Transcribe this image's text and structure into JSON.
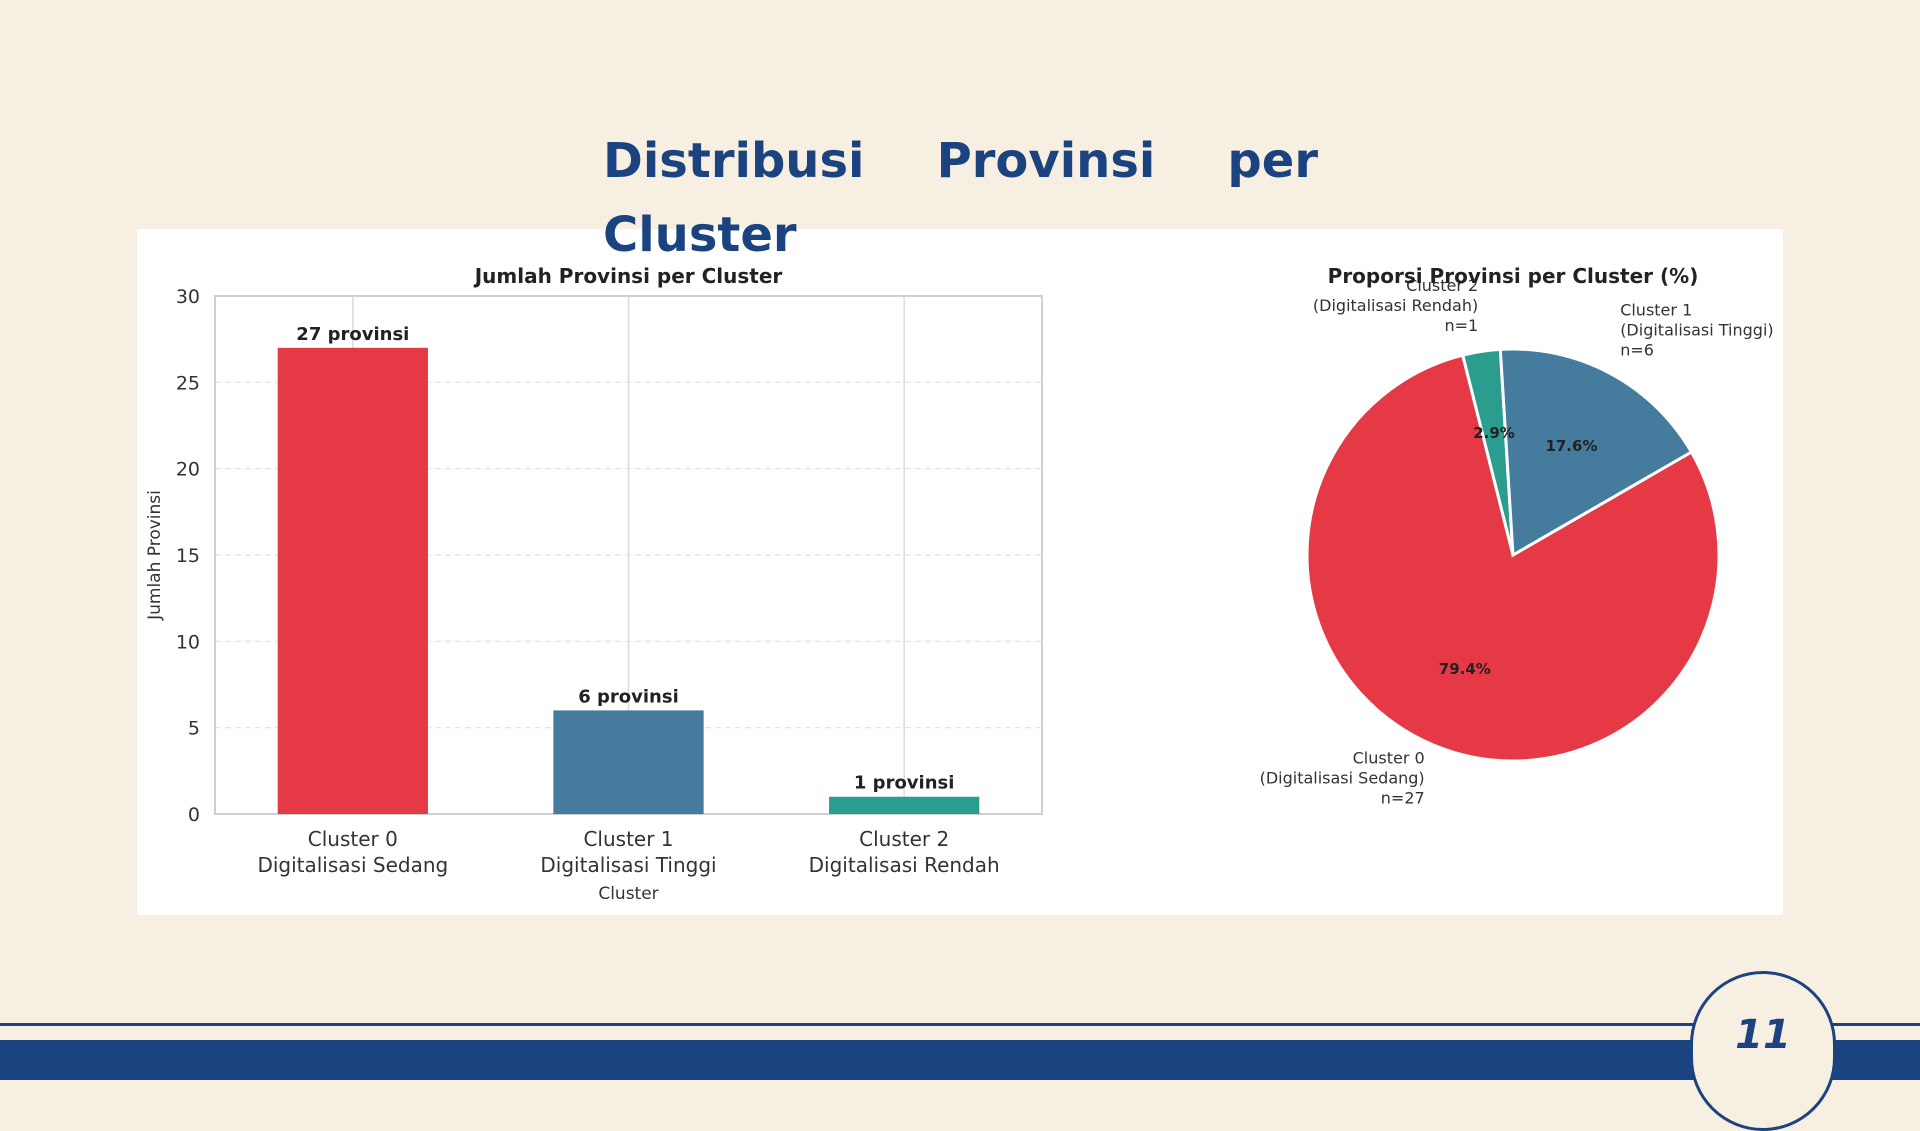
{
  "slide": {
    "title": "Distribusi Provinsi per Cluster",
    "page_number": "11"
  },
  "colors": {
    "background": "#f7efe2",
    "navy": "#1b4380",
    "cluster_0": "#e63946",
    "cluster_1": "#457b9d",
    "cluster_2": "#2a9d8f"
  },
  "chart_data": [
    {
      "type": "bar",
      "title": "Jumlah Provinsi per Cluster",
      "xlabel": "Cluster",
      "ylabel": "Jumlah Provinsi",
      "categories": [
        "Cluster 0\nDigitalisasi Sedang",
        "Cluster 1\nDigitalisasi Tinggi",
        "Cluster 2\nDigitalisasi Rendah"
      ],
      "values": [
        27,
        6,
        1
      ],
      "data_labels": [
        "27 provinsi",
        "6 provinsi",
        "1 provinsi"
      ],
      "colors": [
        "#e63946",
        "#457b9d",
        "#2a9d8f"
      ],
      "ylim": [
        0,
        30
      ],
      "yticks": [
        0,
        5,
        10,
        15,
        20,
        25,
        30
      ],
      "grid": true
    },
    {
      "type": "pie",
      "title": "Proporsi Provinsi per Cluster (%)",
      "slices": [
        {
          "label": "Cluster 0\n(Digitalisasi Sedang)\nn=27",
          "value": 27,
          "percent_label": "79.4%",
          "color": "#e63946"
        },
        {
          "label": "Cluster 1\n(Digitalisasi Tinggi)\nn=6",
          "value": 6,
          "percent_label": "17.6%",
          "color": "#457b9d"
        },
        {
          "label": "Cluster 2\n(Digitalisasi Rendah)\nn=1",
          "value": 1,
          "percent_label": "2.9%",
          "color": "#2a9d8f"
        }
      ]
    }
  ]
}
